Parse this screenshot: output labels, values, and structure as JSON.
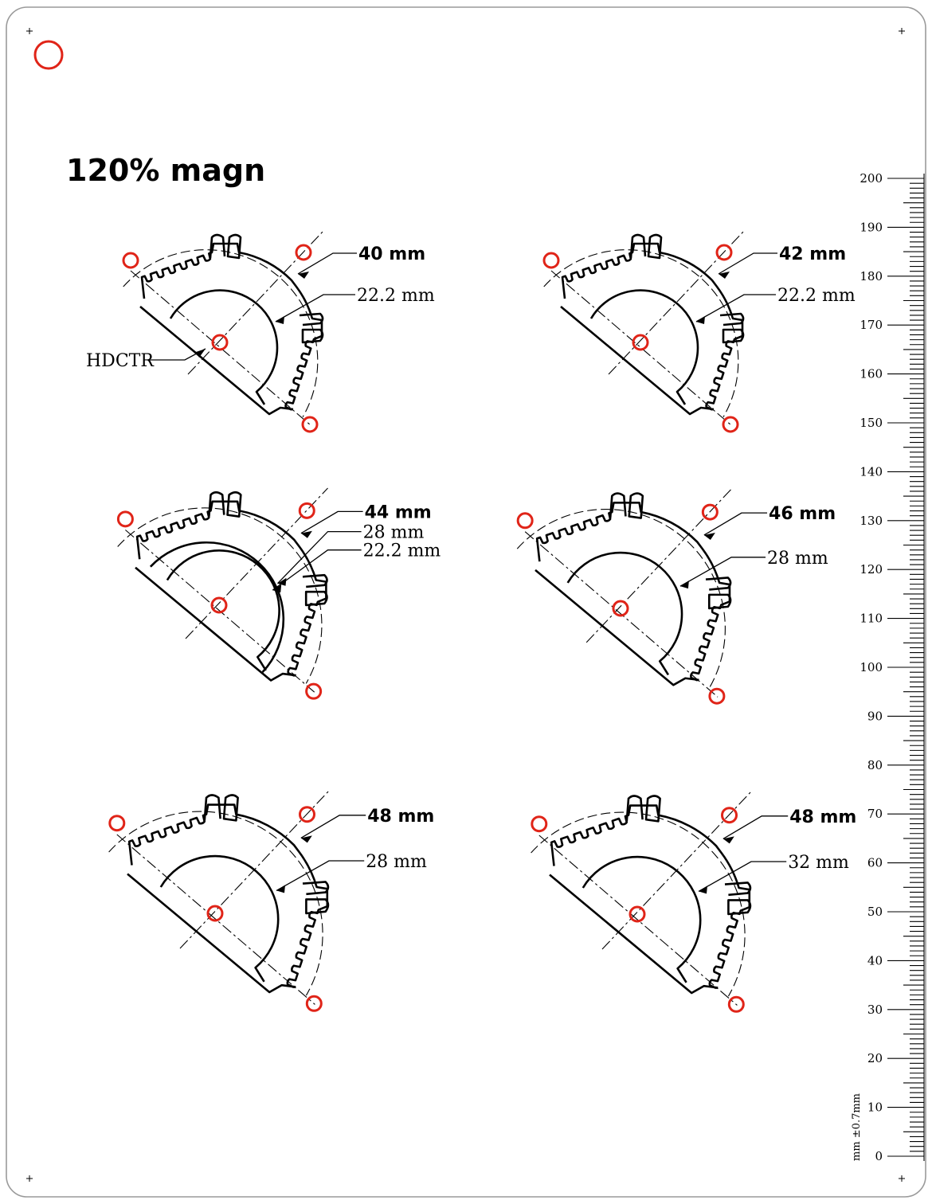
{
  "title": "120% magn",
  "hdctr_label": "HDCTR",
  "diagrams": [
    {
      "outer": "40 mm",
      "inner": [
        "22.2 mm"
      ],
      "has_hdctr": true
    },
    {
      "outer": "42 mm",
      "inner": [
        "22.2 mm"
      ],
      "has_hdctr": false
    },
    {
      "outer": "44 mm",
      "inner": [
        "28 mm",
        "22.2 mm"
      ],
      "has_hdctr": false
    },
    {
      "outer": "46 mm",
      "inner": [
        "28 mm"
      ],
      "has_hdctr": false
    },
    {
      "outer": "48 mm",
      "inner": [
        "28 mm"
      ],
      "has_hdctr": false
    },
    {
      "outer": "48 mm",
      "inner": [
        "32 mm"
      ],
      "has_hdctr": false
    }
  ],
  "ruler": {
    "labels": [
      "0",
      "10",
      "20",
      "30",
      "40",
      "50",
      "60",
      "70",
      "80",
      "90",
      "100",
      "110",
      "120",
      "130",
      "140",
      "150",
      "160",
      "170",
      "180",
      "190",
      "200"
    ],
    "unit": "mm ±0.7mm"
  },
  "colors": {
    "target": "#e02418",
    "ink": "#000000",
    "frame": "#9a9a9a"
  }
}
